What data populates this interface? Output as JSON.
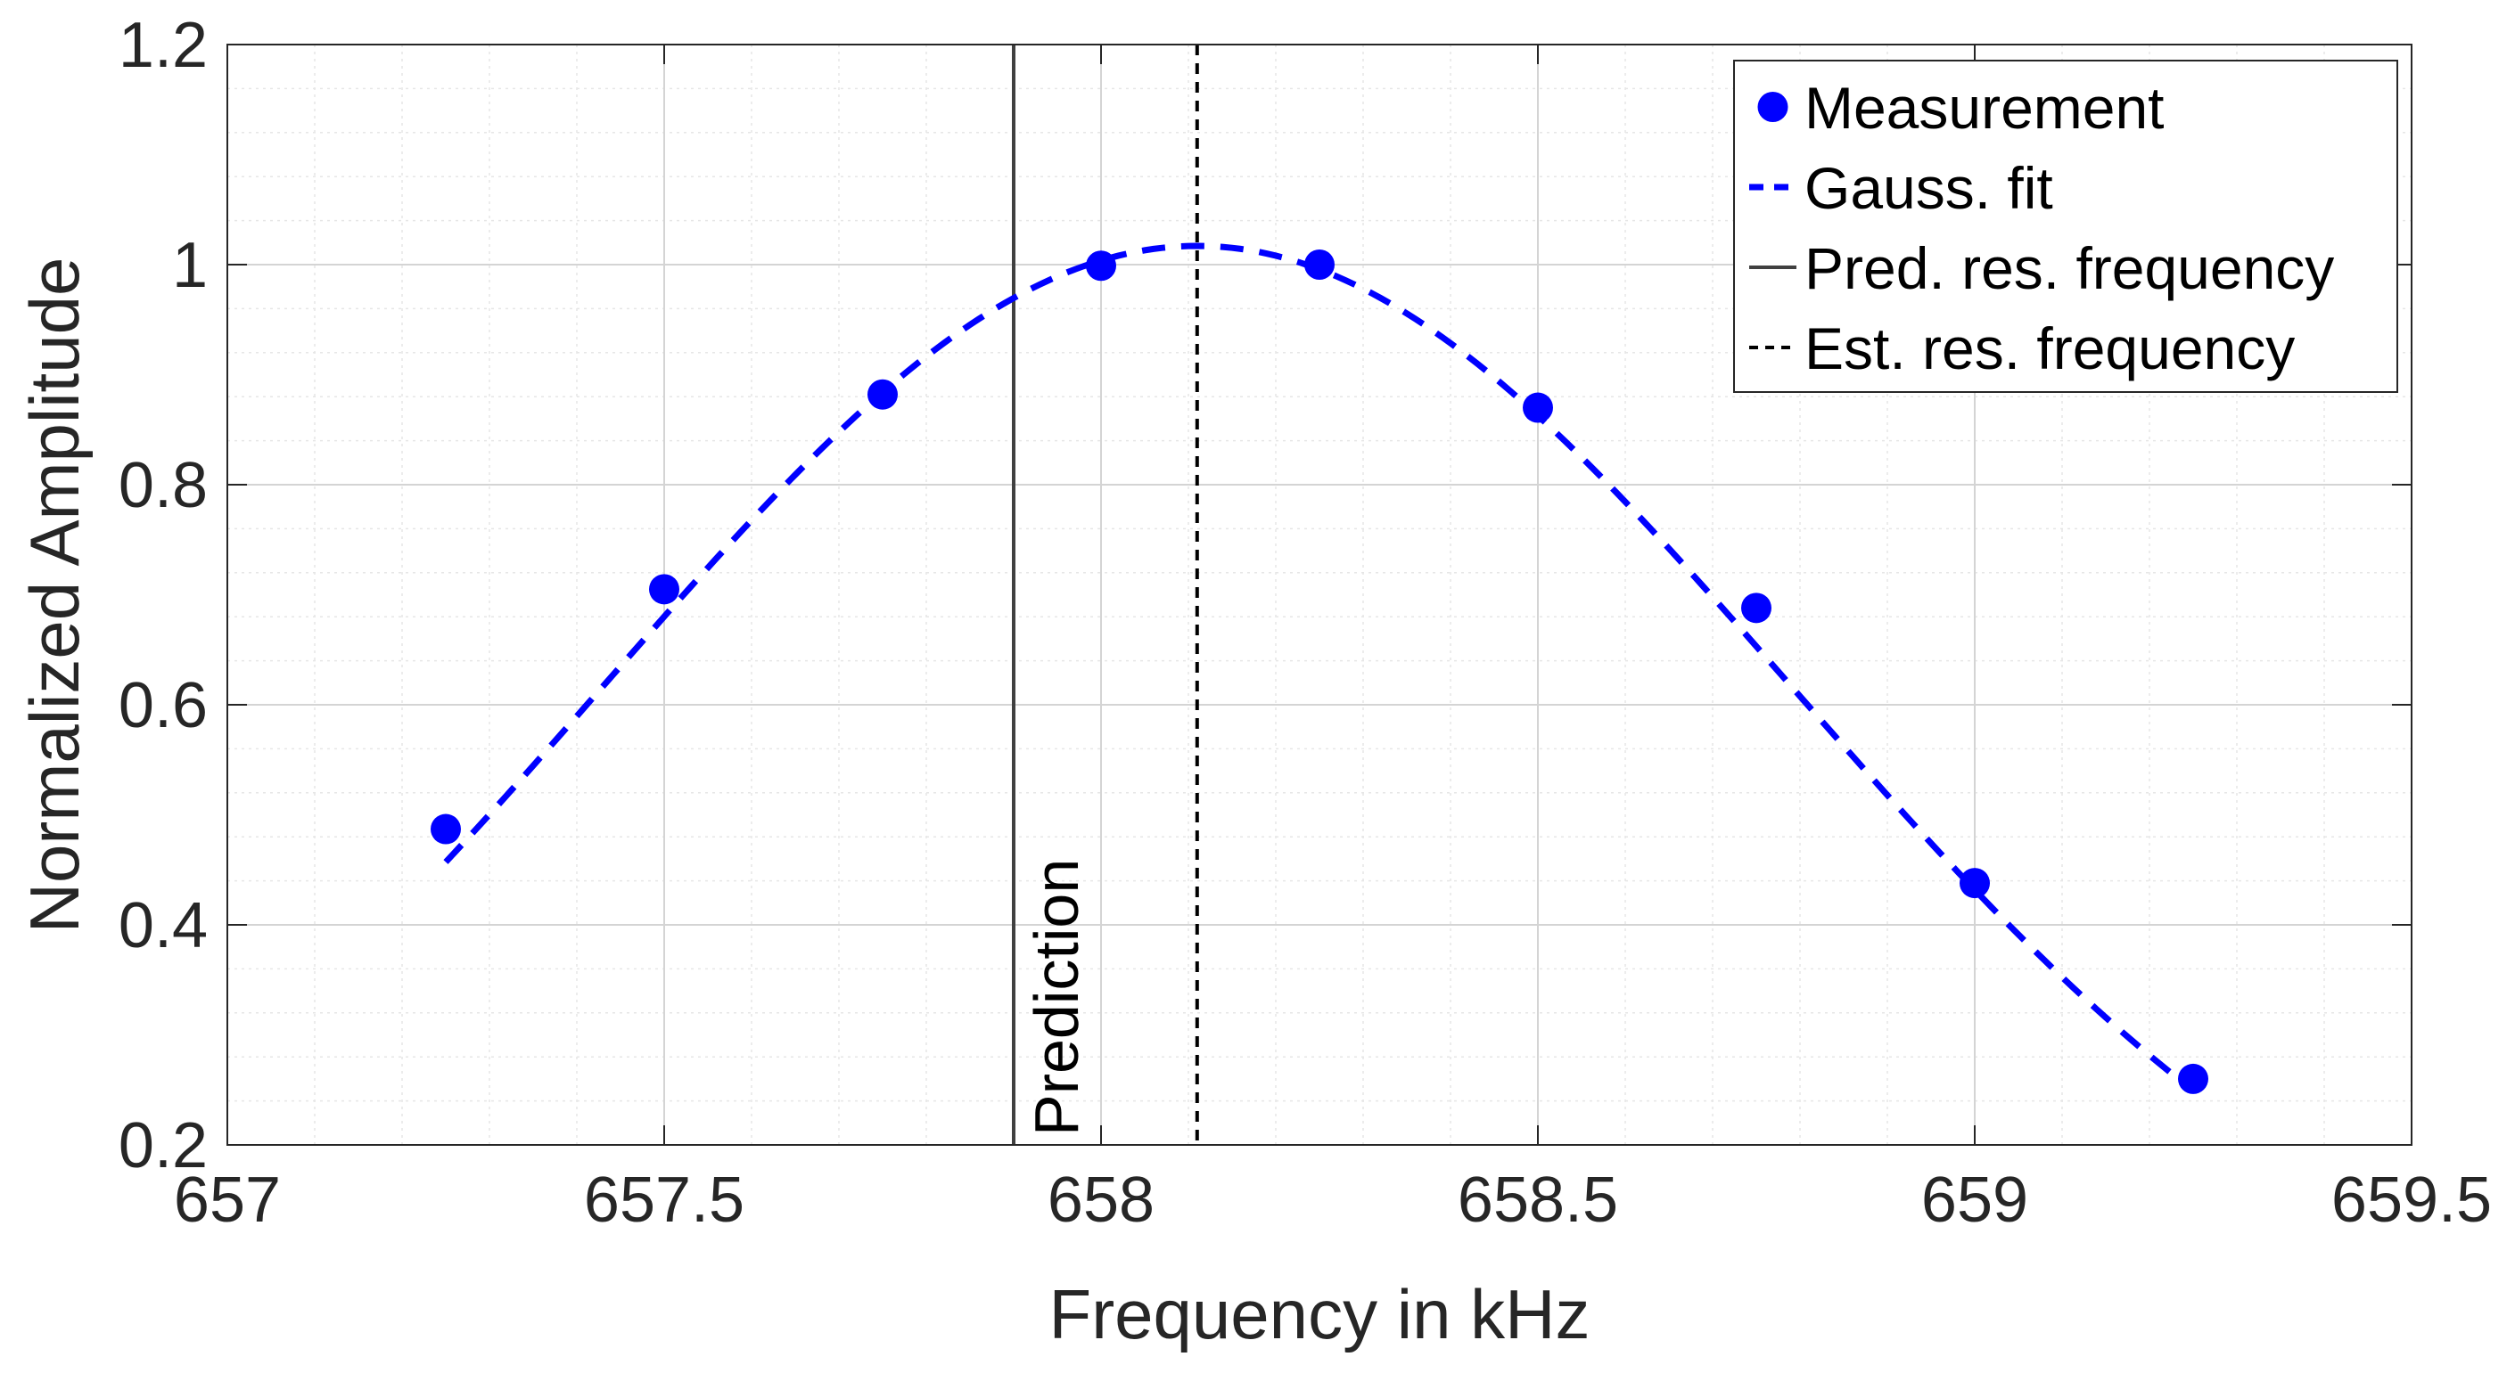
{
  "chart_data": {
    "type": "scatter",
    "xlabel": "Frequency in kHz",
    "ylabel": "Normalized Amplitude",
    "xlim": [
      657,
      659.5
    ],
    "ylim": [
      0.2,
      1.2
    ],
    "xticks": [
      657,
      657.5,
      658,
      658.5,
      659,
      659.5
    ],
    "xtick_labels": [
      "657",
      "657.5",
      "658",
      "658.5",
      "659",
      "659.5"
    ],
    "yticks": [
      0.2,
      0.4,
      0.6,
      0.8,
      1.0,
      1.2
    ],
    "ytick_labels": [
      "0.2",
      "0.4",
      "0.6",
      "0.8",
      "1",
      "1.2"
    ],
    "grid": true,
    "minor_grid": true,
    "legend_position": "top-right",
    "series": [
      {
        "name": "Measurement",
        "kind": "markers",
        "color": "#0000ff",
        "x": [
          657.25,
          657.5,
          657.75,
          658.0,
          658.25,
          658.5,
          658.75,
          659.0,
          659.25
        ],
        "y": [
          0.487,
          0.705,
          0.882,
          0.999,
          1.0,
          0.87,
          0.688,
          0.438,
          0.26
        ]
      },
      {
        "name": "Gauss. fit",
        "kind": "dashed-line",
        "color": "#0000ff",
        "fit": {
          "amplitude": 1.017,
          "center": 658.11,
          "sigma": 0.68
        },
        "x_range": [
          657.25,
          659.25
        ]
      },
      {
        "name": "Pred. res. frequency",
        "kind": "vertical-line",
        "color": "#404040",
        "x": 657.9
      },
      {
        "name": "Est. res. frequency",
        "kind": "vertical-dotted-line",
        "color": "#000000",
        "x": 658.11
      }
    ],
    "annotations": [
      {
        "text": "Prediction",
        "x": 657.9,
        "y": 0.2,
        "rotation": -90
      }
    ]
  }
}
